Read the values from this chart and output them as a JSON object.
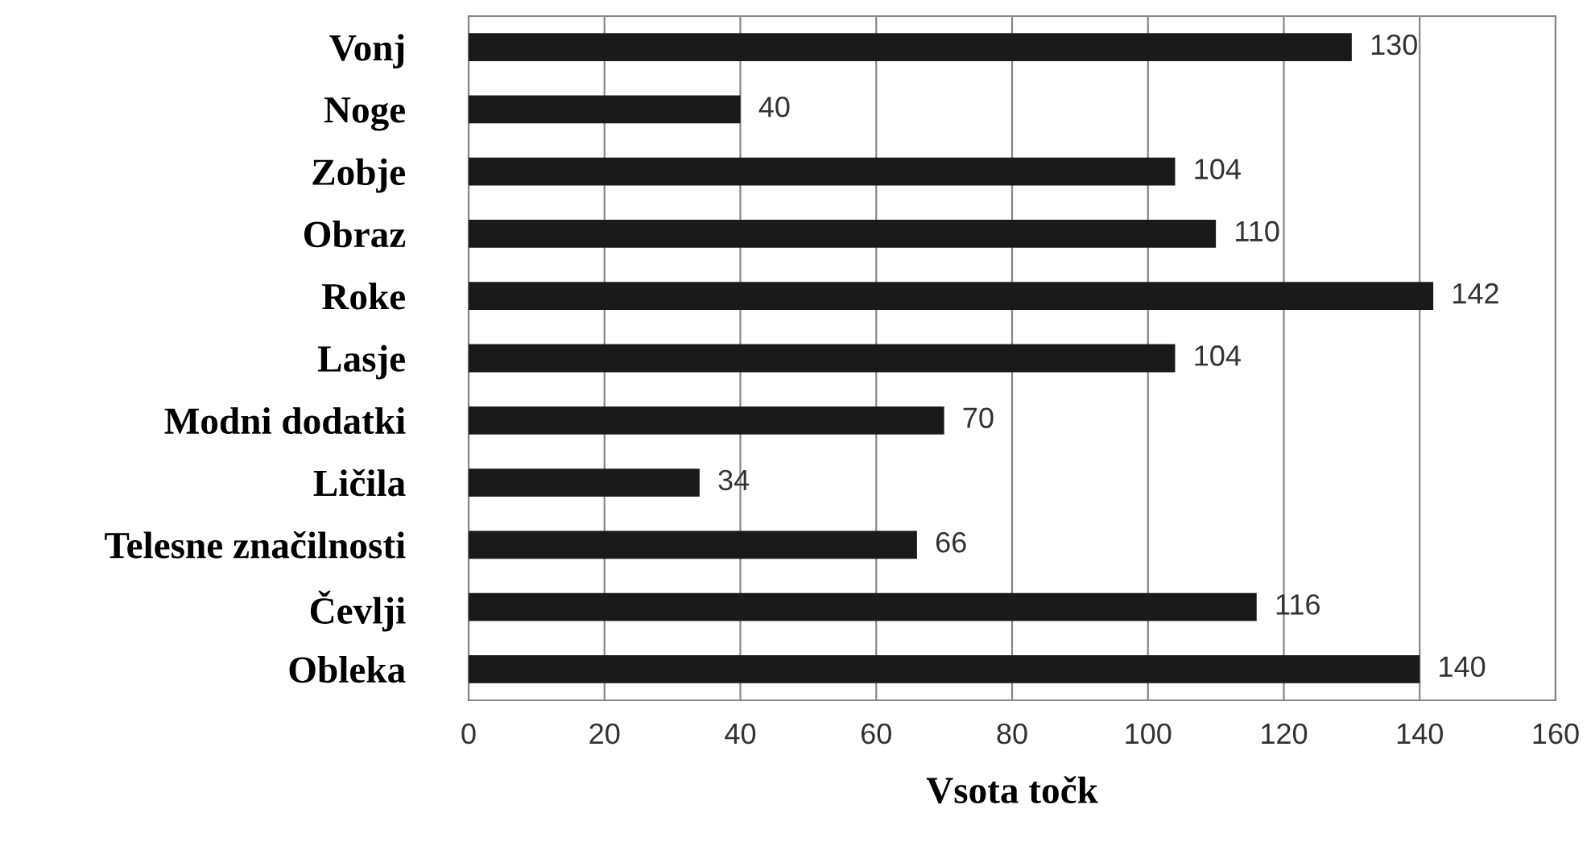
{
  "chart_data": {
    "type": "bar",
    "orientation": "horizontal",
    "xlabel": "Vsota točk",
    "categories": [
      "Vonj",
      "Noge",
      "Zobje",
      "Obraz",
      "Roke",
      "Lasje",
      "Modni dodatki",
      "Ličila",
      "Telesne značilnosti",
      "Čevlji",
      "Obleka"
    ],
    "values": [
      130,
      40,
      104,
      110,
      142,
      104,
      70,
      34,
      66,
      116,
      140
    ],
    "color": "#1a1a1a",
    "xlim": [
      0,
      160
    ],
    "xticks": [
      0,
      20,
      40,
      60,
      80,
      100,
      120,
      140,
      160
    ],
    "grid": "x",
    "data_labels": true
  }
}
